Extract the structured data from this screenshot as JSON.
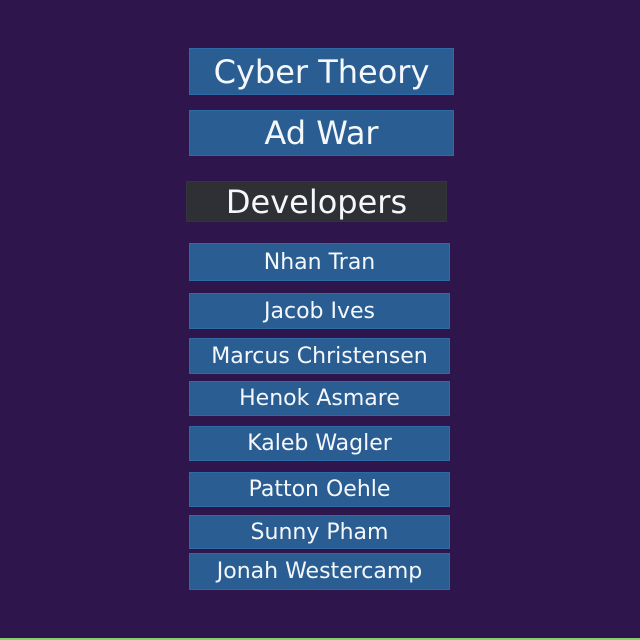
{
  "title_buttons": {
    "first": "Cyber Theory",
    "second": "Ad War"
  },
  "section": {
    "label": "Developers"
  },
  "developers": [
    "Nhan Tran",
    "Jacob Ives",
    "Marcus Christensen",
    "Henok Asmare",
    "Kaleb Wagler",
    "Patton Oehle",
    "Sunny Pham",
    "Jonah Westercamp"
  ],
  "colors": {
    "background": "#2e154b",
    "button": "#2a5e93",
    "section_header": "#2f3035",
    "text": "#f4f7fb"
  }
}
